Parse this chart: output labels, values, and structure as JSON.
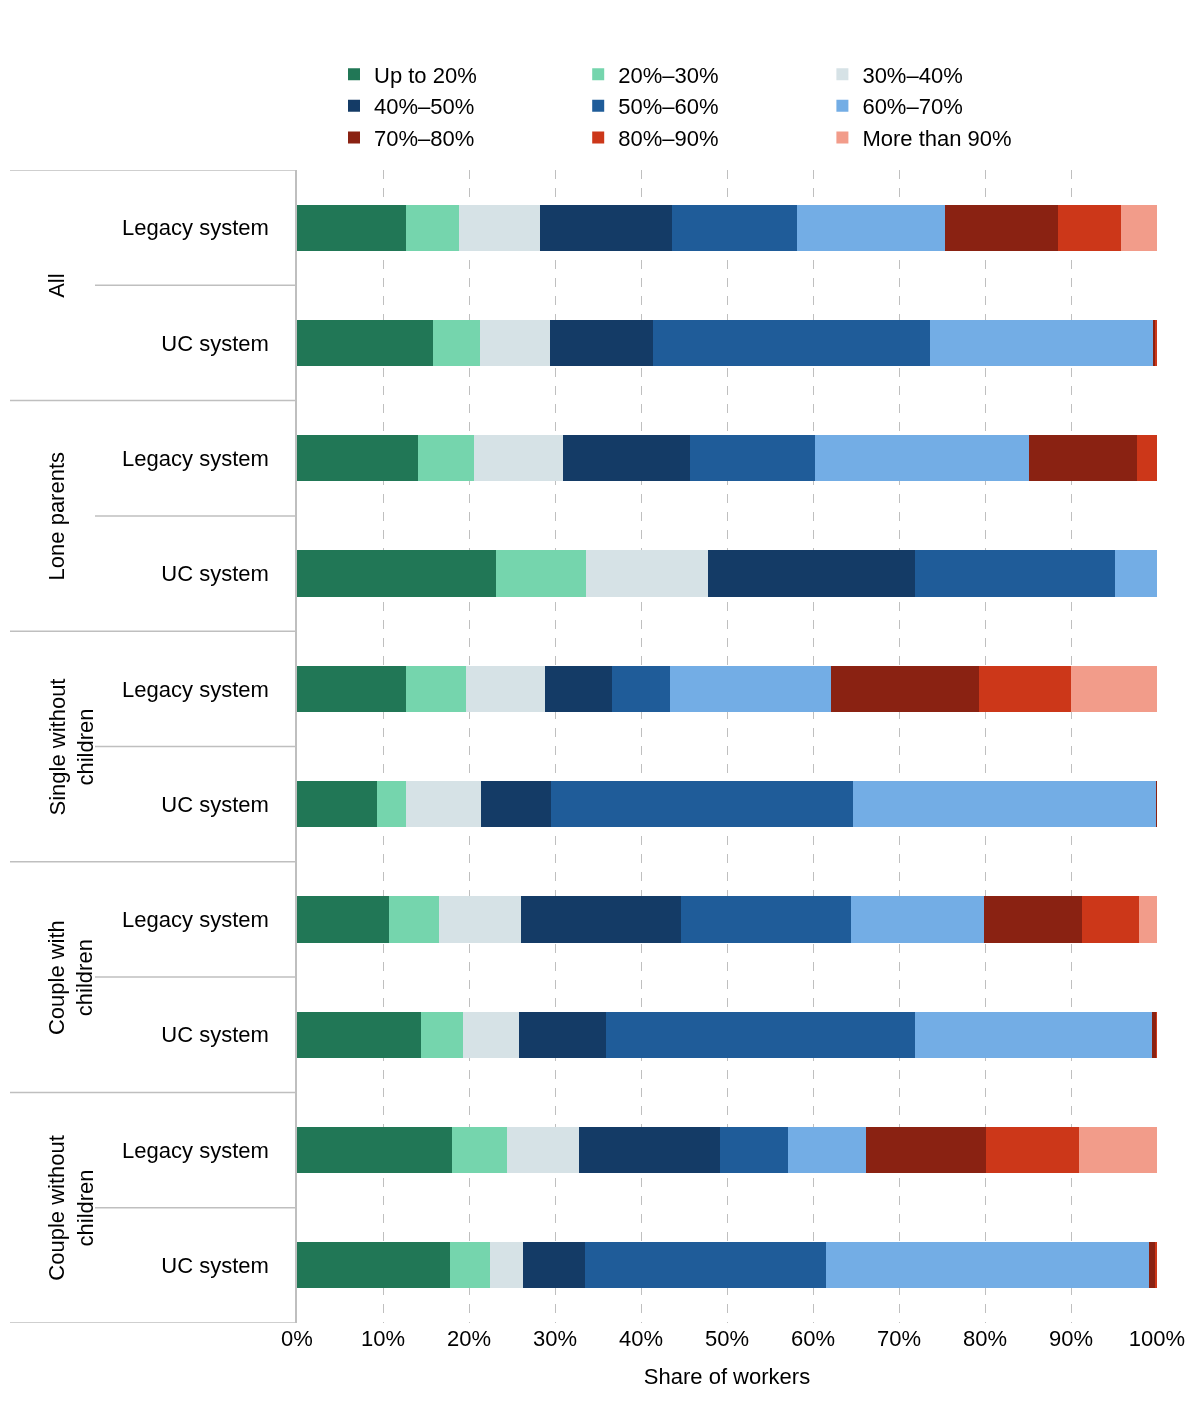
{
  "chart_data": {
    "type": "bar",
    "orientation": "horizontal",
    "stacked": true,
    "categories": [
      "Legacy system",
      "UC system",
      "Legacy system",
      "UC system",
      "Legacy system",
      "UC system",
      "Legacy system",
      "UC system",
      "Legacy system",
      "UC system"
    ],
    "annotations": [
      "All",
      "Lone parents",
      "Single without children",
      "Couple with children",
      "Couple without children"
    ],
    "xlabel": "Share of workers",
    "xlim": [
      0,
      100
    ],
    "xticks": [
      {
        "value": 0,
        "label": "0%"
      },
      {
        "value": 10,
        "label": "10%"
      },
      {
        "value": 20,
        "label": "20%"
      },
      {
        "value": 30,
        "label": "30%"
      },
      {
        "value": 40,
        "label": "40%"
      },
      {
        "value": 50,
        "label": "50%"
      },
      {
        "value": 60,
        "label": "60%"
      },
      {
        "value": 70,
        "label": "70%"
      },
      {
        "value": 80,
        "label": "80%"
      },
      {
        "value": 90,
        "label": "90%"
      },
      {
        "value": 100,
        "label": "100%"
      }
    ],
    "grid": "x",
    "legend": "top",
    "series": [
      {
        "name": "Up to 20%",
        "color": "#217756",
        "values": [
          12.7,
          15.8,
          14.1,
          23.1,
          12.7,
          9.3,
          10.7,
          14.4,
          18.0,
          17.8
        ]
      },
      {
        "name": "20%–30%",
        "color": "#75d5ad",
        "values": [
          6.1,
          5.5,
          6.5,
          10.5,
          7.0,
          3.4,
          5.8,
          4.9,
          6.4,
          4.6
        ]
      },
      {
        "name": "30%–40%",
        "color": "#d6e2e6",
        "values": [
          9.5,
          8.1,
          10.3,
          14.2,
          9.1,
          8.7,
          9.5,
          6.5,
          8.4,
          3.9
        ]
      },
      {
        "name": "40%–50%",
        "color": "#143b66",
        "values": [
          15.3,
          12.0,
          14.8,
          24.1,
          7.8,
          8.1,
          18.7,
          10.1,
          16.4,
          7.2
        ]
      },
      {
        "name": "50%–60%",
        "color": "#1f5c99",
        "values": [
          14.5,
          32.2,
          14.5,
          23.2,
          6.8,
          35.2,
          19.7,
          36.0,
          7.9,
          28.0
        ]
      },
      {
        "name": "60%–70%",
        "color": "#73ade5",
        "values": [
          17.2,
          25.9,
          24.9,
          4.9,
          18.7,
          35.2,
          15.5,
          27.5,
          9.1,
          37.6
        ]
      },
      {
        "name": "70%–80%",
        "color": "#8a2212",
        "values": [
          13.2,
          0.3,
          12.6,
          0,
          17.2,
          0.1,
          11.4,
          0.5,
          13.9,
          0.7
        ]
      },
      {
        "name": "80%–90%",
        "color": "#cc3719",
        "values": [
          7.3,
          0.1,
          2.3,
          0,
          10.7,
          0,
          6.6,
          0.1,
          10.8,
          0.2
        ]
      },
      {
        "name": "More than 90%",
        "color": "#f29c8a",
        "values": [
          4.2,
          0,
          0,
          0,
          10.0,
          0,
          2.1,
          0,
          9.1,
          0
        ]
      }
    ]
  }
}
